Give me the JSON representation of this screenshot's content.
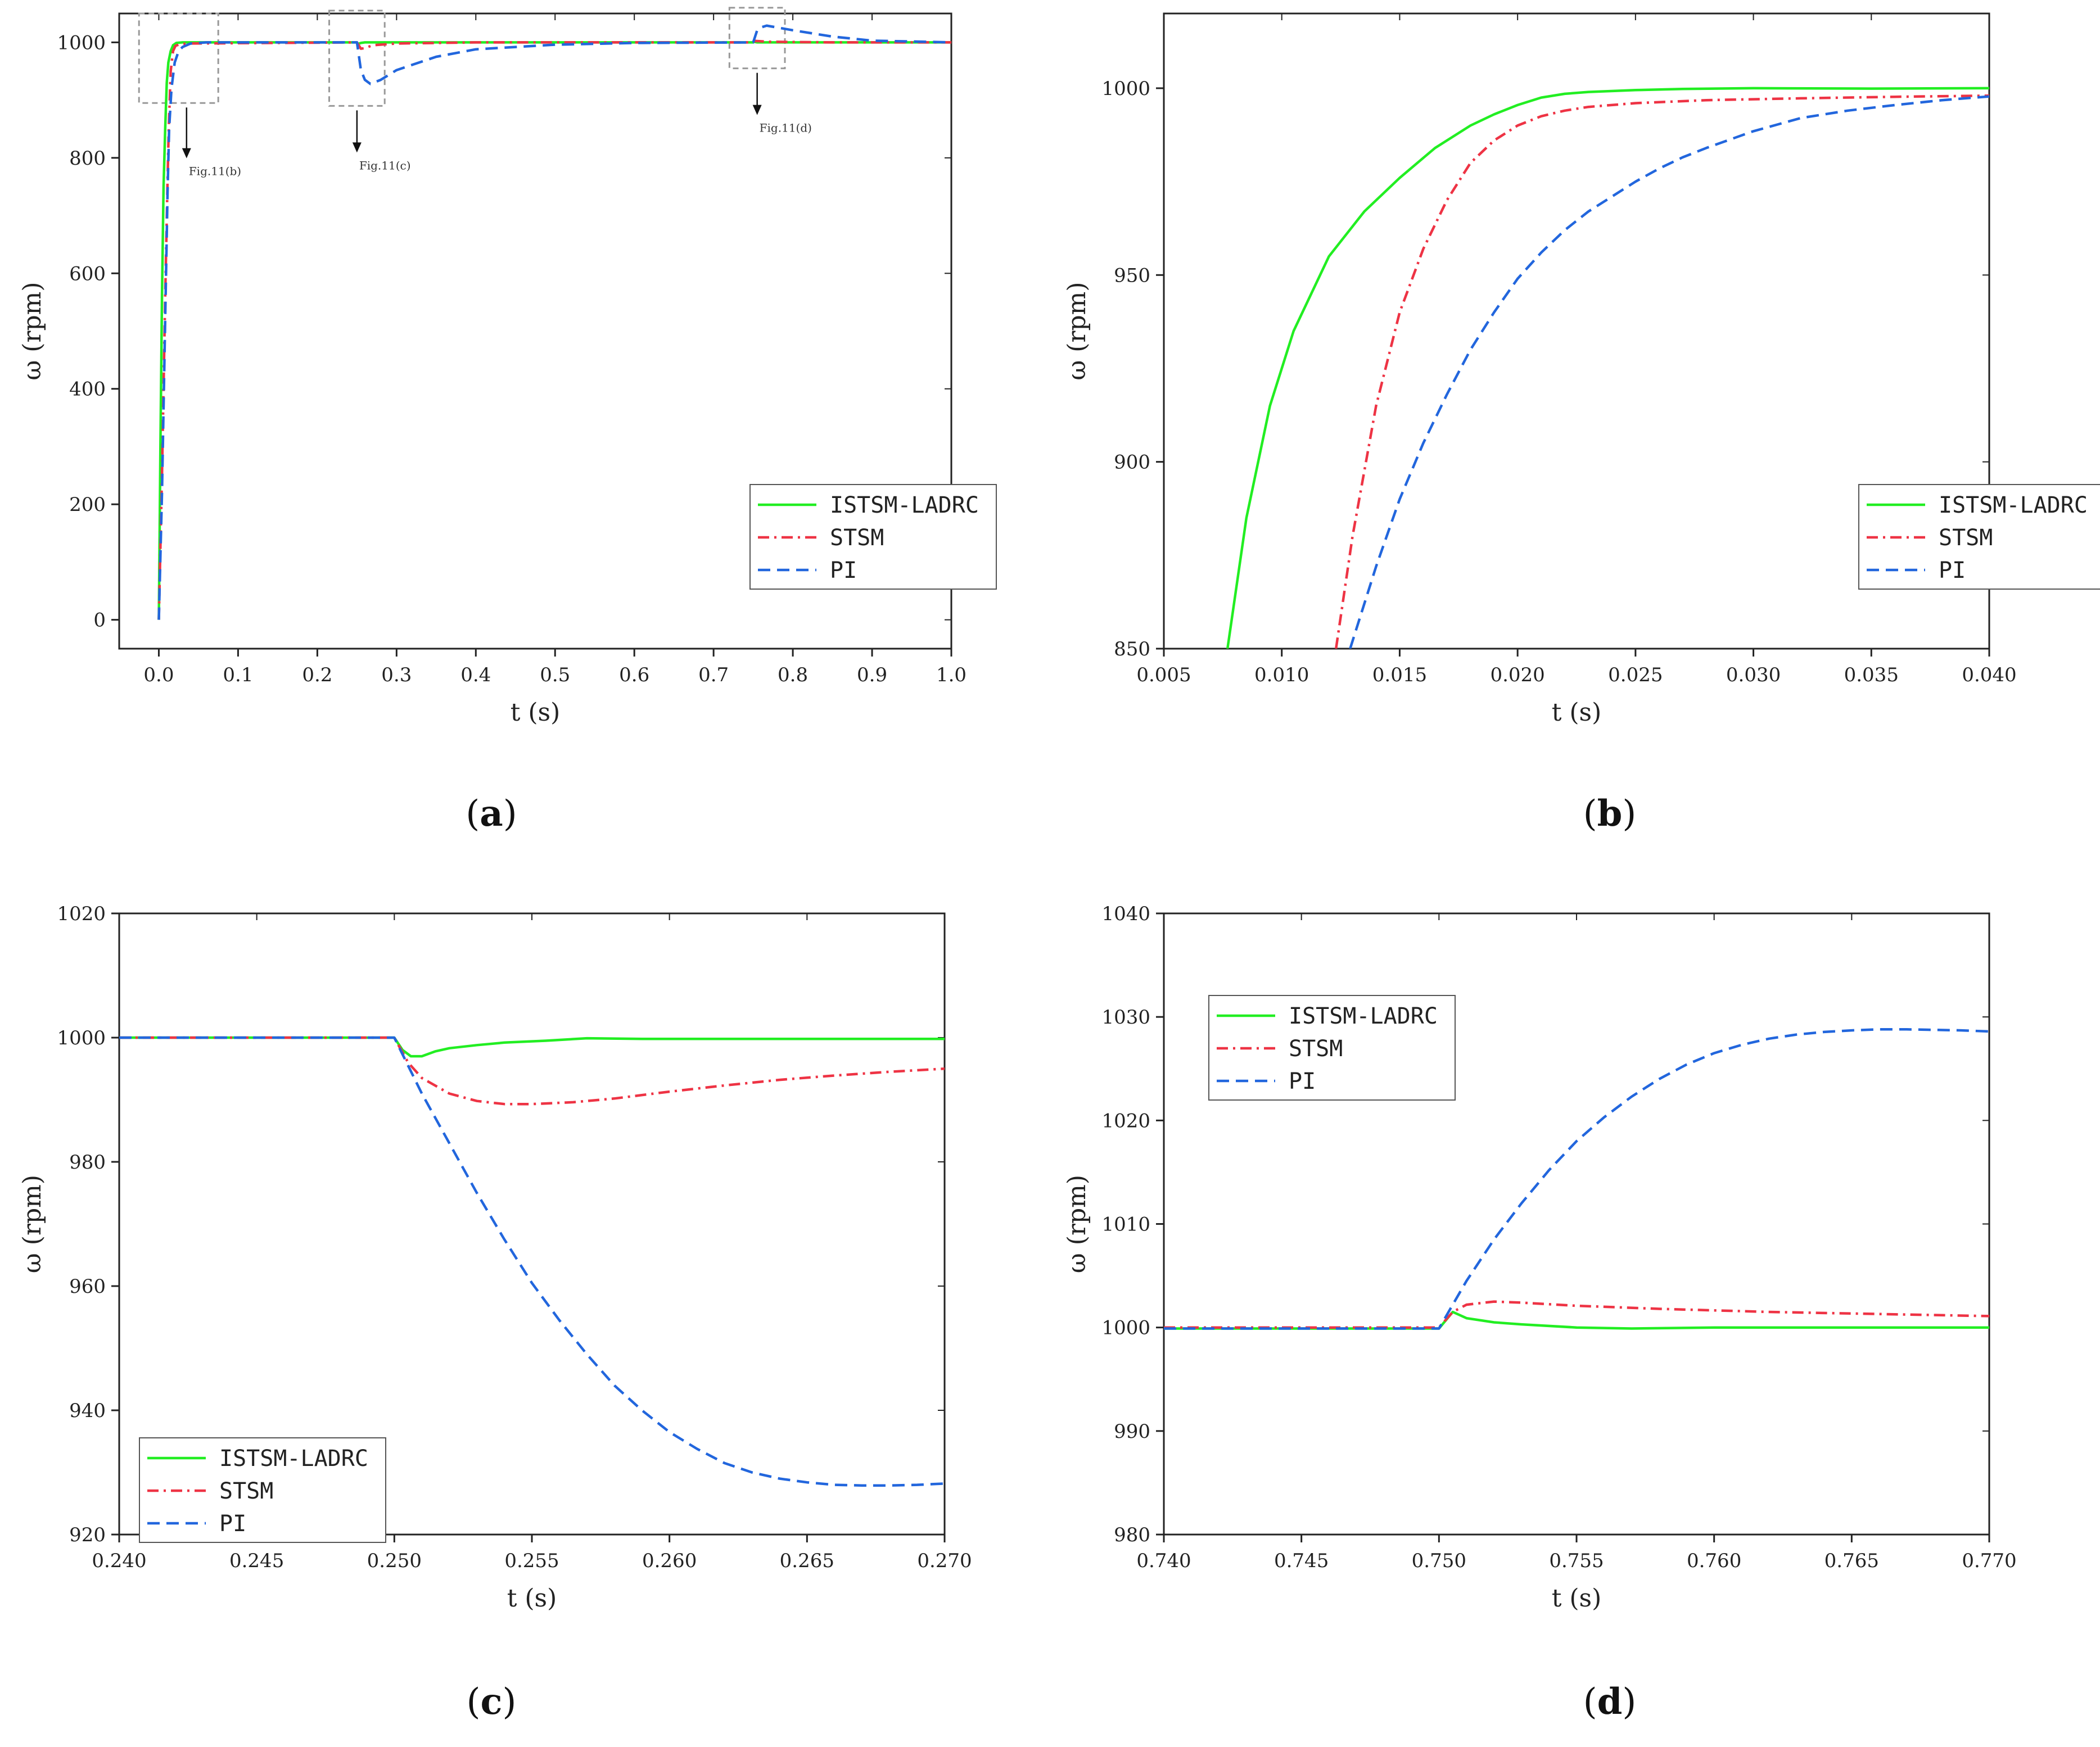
{
  "colors": {
    "istsm": "#22ee22",
    "stsm": "#ee3344",
    "pi": "#2266dd",
    "axis": "#222222",
    "zoom_box": "#999999"
  },
  "legend_order": [
    "ISTSM-LADRC",
    "STSM",
    "PI"
  ],
  "chart_data": [
    {
      "id": "a",
      "type": "line",
      "caption": "a",
      "xlabel": "t (s)",
      "ylabel": "ω (rpm)",
      "xlim": [
        -0.05,
        1.0
      ],
      "ylim": [
        -50,
        1050
      ],
      "xticks": [
        0.0,
        0.1,
        0.2,
        0.3,
        0.4,
        0.5,
        0.6,
        0.7,
        0.8,
        0.9,
        1.0
      ],
      "xtick_labels": [
        "0.0",
        "0.1",
        "0.2",
        "0.3",
        "0.4",
        "0.5",
        "0.6",
        "0.7",
        "0.8",
        "0.9",
        "1.0"
      ],
      "yticks": [
        0,
        200,
        400,
        600,
        800,
        1000
      ],
      "ytick_labels": [
        "0",
        "200",
        "400",
        "600",
        "800",
        "1000"
      ],
      "legend_position": "bottom-right",
      "series": [
        {
          "name": "ISTSM-LADRC",
          "style": "solid",
          "x": [
            0.0,
            0.002,
            0.004,
            0.006,
            0.008,
            0.01,
            0.012,
            0.015,
            0.018,
            0.022,
            0.03,
            0.25,
            0.251,
            0.255,
            0.26,
            0.75,
            0.751,
            0.755,
            1.0
          ],
          "y": [
            0,
            300,
            560,
            750,
            850,
            930,
            965,
            985,
            995,
            999,
            1000,
            1000,
            997,
            999,
            1000,
            1000,
            1001,
            1000,
            1000
          ]
        },
        {
          "name": "STSM",
          "style": "dashdot",
          "x": [
            0.0,
            0.004,
            0.008,
            0.011,
            0.0125,
            0.015,
            0.018,
            0.021,
            0.025,
            0.035,
            0.25,
            0.255,
            0.26,
            0.27,
            0.3,
            0.4,
            0.75,
            0.752,
            0.77,
            0.85,
            1.0
          ],
          "y": [
            0,
            250,
            560,
            760,
            850,
            950,
            985,
            994,
            996,
            998,
            1000,
            989,
            990,
            995,
            998,
            1000,
            1000,
            1002.5,
            1001,
            1000,
            1000
          ]
        },
        {
          "name": "PI",
          "style": "dashed",
          "x": [
            0.0,
            0.004,
            0.008,
            0.011,
            0.013,
            0.016,
            0.02,
            0.025,
            0.03,
            0.04,
            0.06,
            0.25,
            0.255,
            0.26,
            0.267,
            0.28,
            0.3,
            0.35,
            0.4,
            0.5,
            0.6,
            0.75,
            0.755,
            0.76,
            0.767,
            0.8,
            0.85,
            0.9,
            1.0
          ],
          "y": [
            0,
            220,
            520,
            740,
            850,
            920,
            965,
            985,
            992,
            998,
            1000,
            1000,
            952,
            935,
            928,
            935,
            952,
            975,
            988,
            996,
            999,
            1000,
            1021,
            1026,
            1029,
            1021,
            1010,
            1003,
            1000
          ]
        }
      ],
      "annotations": [
        {
          "label": "Fig.11(b)",
          "x_range": [
            -0.025,
            0.075
          ],
          "y_range": [
            895,
            1050
          ],
          "text_at": [
            0.035,
            770
          ]
        },
        {
          "label": "Fig.11(c)",
          "x_range": [
            0.215,
            0.285
          ],
          "y_range": [
            890,
            1055
          ],
          "text_at": [
            0.25,
            780
          ]
        },
        {
          "label": "Fig.11(d)",
          "x_range": [
            0.72,
            0.79
          ],
          "y_range": [
            955,
            1060
          ],
          "text_at": [
            0.755,
            845
          ]
        }
      ]
    },
    {
      "id": "b",
      "type": "line",
      "caption": "b",
      "xlabel": "t (s)",
      "ylabel": "ω (rpm)",
      "xlim": [
        0.005,
        0.04
      ],
      "ylim": [
        850,
        1020
      ],
      "xticks": [
        0.005,
        0.01,
        0.015,
        0.02,
        0.025,
        0.03,
        0.035,
        0.04
      ],
      "xtick_labels": [
        "0.005",
        "0.010",
        "0.015",
        "0.020",
        "0.025",
        "0.030",
        "0.035",
        "0.040"
      ],
      "yticks": [
        850,
        900,
        950,
        1000
      ],
      "ytick_labels": [
        "850",
        "900",
        "950",
        "1000"
      ],
      "legend_position": "lower-right",
      "series": [
        {
          "name": "ISTSM-LADRC",
          "style": "solid",
          "x": [
            0.0077,
            0.0085,
            0.0095,
            0.0105,
            0.012,
            0.0135,
            0.015,
            0.0165,
            0.018,
            0.019,
            0.02,
            0.021,
            0.022,
            0.023,
            0.025,
            0.027,
            0.03,
            0.035,
            0.04
          ],
          "y": [
            850,
            885,
            915,
            935,
            955,
            967,
            976,
            984,
            990,
            993,
            995.5,
            997.5,
            998.5,
            999,
            999.5,
            999.8,
            1000,
            999.9,
            1000
          ]
        },
        {
          "name": "STSM",
          "style": "dashdot",
          "x": [
            0.0123,
            0.013,
            0.014,
            0.015,
            0.016,
            0.017,
            0.018,
            0.019,
            0.02,
            0.021,
            0.022,
            0.023,
            0.025,
            0.028,
            0.032,
            0.036,
            0.04
          ],
          "y": [
            850,
            880,
            915,
            940,
            957,
            970,
            980,
            986,
            990,
            992.5,
            994,
            995,
            996,
            996.8,
            997.3,
            997.7,
            998
          ]
        },
        {
          "name": "PI",
          "style": "dashed",
          "x": [
            0.0129,
            0.014,
            0.015,
            0.016,
            0.017,
            0.018,
            0.019,
            0.02,
            0.021,
            0.022,
            0.023,
            0.024,
            0.025,
            0.026,
            0.027,
            0.028,
            0.03,
            0.032,
            0.034,
            0.036,
            0.038,
            0.04
          ],
          "y": [
            850,
            872,
            890,
            905,
            918,
            930,
            940,
            949,
            956,
            962,
            967,
            971,
            975,
            978.5,
            981.5,
            984,
            988.5,
            992,
            994,
            995.5,
            996.8,
            997.8
          ]
        }
      ]
    },
    {
      "id": "c",
      "type": "line",
      "caption": "c",
      "xlabel": "t (s)",
      "ylabel": "ω (rpm)",
      "xlim": [
        0.24,
        0.27
      ],
      "ylim": [
        920,
        1020
      ],
      "xticks": [
        0.24,
        0.245,
        0.25,
        0.255,
        0.26,
        0.265,
        0.27
      ],
      "xtick_labels": [
        "0.240",
        "0.245",
        "0.250",
        "0.255",
        "0.260",
        "0.265",
        "0.270"
      ],
      "yticks": [
        920,
        940,
        960,
        980,
        1000,
        1020
      ],
      "ytick_labels": [
        "920",
        "940",
        "960",
        "980",
        "1000",
        "1020"
      ],
      "legend_position": "bottom-left",
      "series": [
        {
          "name": "ISTSM-LADRC",
          "style": "solid",
          "x": [
            0.24,
            0.25,
            0.2503,
            0.2506,
            0.251,
            0.2515,
            0.252,
            0.253,
            0.254,
            0.2555,
            0.257,
            0.259,
            0.262,
            0.265,
            0.27
          ],
          "y": [
            1000,
            1000,
            998,
            997,
            997,
            997.8,
            998.3,
            998.8,
            999.2,
            999.5,
            999.9,
            999.8,
            999.8,
            999.8,
            999.8
          ]
        },
        {
          "name": "STSM",
          "style": "dashdot",
          "x": [
            0.24,
            0.25,
            0.2505,
            0.251,
            0.252,
            0.253,
            0.254,
            0.255,
            0.2565,
            0.258,
            0.26,
            0.262,
            0.264,
            0.266,
            0.268,
            0.27
          ],
          "y": [
            1000,
            1000,
            996,
            993.5,
            991,
            989.8,
            989.3,
            989.3,
            989.6,
            990.2,
            991.3,
            992.3,
            993.2,
            993.9,
            994.5,
            995
          ]
        },
        {
          "name": "PI",
          "style": "dashed",
          "x": [
            0.24,
            0.25,
            0.251,
            0.252,
            0.253,
            0.254,
            0.255,
            0.256,
            0.257,
            0.258,
            0.259,
            0.26,
            0.261,
            0.262,
            0.263,
            0.264,
            0.265,
            0.266,
            0.267,
            0.268,
            0.269,
            0.27
          ],
          "y": [
            1000,
            1000,
            991,
            983,
            975,
            967.5,
            960.5,
            954.5,
            949,
            944,
            940,
            936.5,
            933.8,
            931.5,
            930,
            929,
            928.4,
            928,
            927.9,
            927.9,
            928,
            928.2
          ]
        }
      ]
    },
    {
      "id": "d",
      "type": "line",
      "caption": "d",
      "xlabel": "t (s)",
      "ylabel": "ω (rpm)",
      "xlim": [
        0.74,
        0.77
      ],
      "ylim": [
        980,
        1040
      ],
      "xticks": [
        0.74,
        0.745,
        0.75,
        0.755,
        0.76,
        0.765,
        0.77
      ],
      "xtick_labels": [
        "0.740",
        "0.745",
        "0.750",
        "0.755",
        "0.760",
        "0.765",
        "0.770"
      ],
      "yticks": [
        980,
        990,
        1000,
        1010,
        1020,
        1030,
        1040
      ],
      "ytick_labels": [
        "980",
        "990",
        "1000",
        "1010",
        "1020",
        "1030",
        "1040"
      ],
      "legend_position": "top-left",
      "series": [
        {
          "name": "ISTSM-LADRC",
          "style": "solid",
          "x": [
            0.74,
            0.75,
            0.7505,
            0.751,
            0.752,
            0.753,
            0.755,
            0.757,
            0.76,
            0.765,
            0.77
          ],
          "y": [
            999.9,
            999.9,
            1001.5,
            1000.9,
            1000.5,
            1000.3,
            1000,
            999.9,
            1000,
            1000,
            1000
          ]
        },
        {
          "name": "STSM",
          "style": "dashdot",
          "x": [
            0.74,
            0.75,
            0.7505,
            0.751,
            0.752,
            0.753,
            0.755,
            0.758,
            0.762,
            0.766,
            0.77
          ],
          "y": [
            1000,
            1000,
            1001.5,
            1002.2,
            1002.5,
            1002.4,
            1002.1,
            1001.8,
            1001.5,
            1001.3,
            1001.1
          ]
        },
        {
          "name": "PI",
          "style": "dashed",
          "x": [
            0.74,
            0.75,
            0.751,
            0.752,
            0.753,
            0.754,
            0.755,
            0.756,
            0.757,
            0.758,
            0.759,
            0.76,
            0.761,
            0.762,
            0.763,
            0.764,
            0.765,
            0.766,
            0.767,
            0.768,
            0.769,
            0.77
          ],
          "y": [
            999.9,
            999.9,
            1004.5,
            1008.5,
            1012,
            1015.2,
            1018,
            1020.3,
            1022.3,
            1024,
            1025.4,
            1026.5,
            1027.3,
            1027.9,
            1028.3,
            1028.55,
            1028.7,
            1028.8,
            1028.8,
            1028.75,
            1028.7,
            1028.6
          ]
        }
      ]
    }
  ]
}
